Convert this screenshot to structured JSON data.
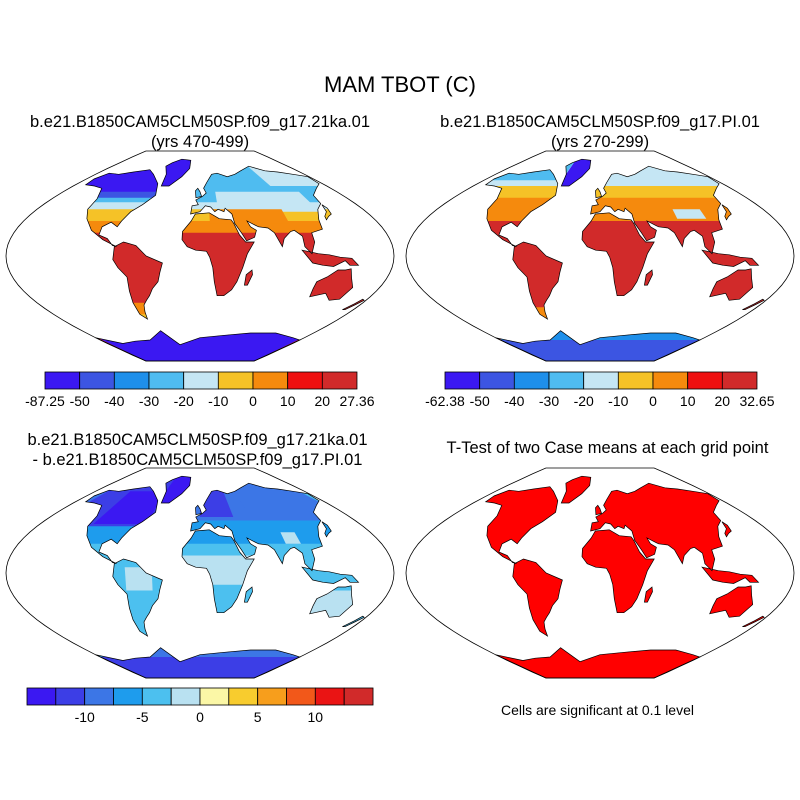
{
  "figure": {
    "title": "MAM TBOT (C)",
    "panels": [
      {
        "id": "p1",
        "title_line1": "b.e21.B1850CAM5CLM50SP.f09_g17.21ka.01",
        "title_line2": "(yrs 470-499)",
        "colors": [
          "#3b18f2",
          "#3c55e2",
          "#1e8fea",
          "#4fbcf0",
          "#c5e6f4",
          "#f5c227",
          "#f58a0d",
          "#ee1010",
          "#d12a2a"
        ],
        "tick_labels": [
          "-87.25",
          "-50",
          "-40",
          "-30",
          "-20",
          "-10",
          "0",
          "10",
          "20",
          "27.36"
        ]
      },
      {
        "id": "p2",
        "title_line1": "b.e21.B1850CAM5CLM50SP.f09_g17.PI.01",
        "title_line2": "(yrs 270-299)",
        "colors": [
          "#3b18f2",
          "#3c55e2",
          "#1e8fea",
          "#4fbcf0",
          "#c5e6f4",
          "#f5c227",
          "#f58a0d",
          "#ee1010",
          "#d12a2a"
        ],
        "tick_labels": [
          "-62.38",
          "-50",
          "-40",
          "-30",
          "-20",
          "-10",
          "0",
          "10",
          "20",
          "32.65"
        ]
      },
      {
        "id": "p3",
        "title_line1": "b.e21.B1850CAM5CLM50SP.f09_g17.21ka.01",
        "title_line2": "- b.e21.B1850CAM5CLM50SP.f09_g17.PI.01",
        "colors": [
          "#3b18f2",
          "#3c3ee6",
          "#3c76e6",
          "#1e9ced",
          "#4cc0ef",
          "#b9e1f1",
          "#fbf7a6",
          "#f8cc2e",
          "#f79e1c",
          "#f2581a",
          "#ea1414",
          "#d12a2a"
        ],
        "tick_labels": [
          "-10",
          "-5",
          "0",
          "5",
          "10"
        ]
      },
      {
        "id": "p4",
        "title_line1": "T-Test of two Case means at each grid point",
        "note": "Cells are significant at 0.1 level",
        "colors": [
          "#ff0000"
        ]
      }
    ]
  }
}
